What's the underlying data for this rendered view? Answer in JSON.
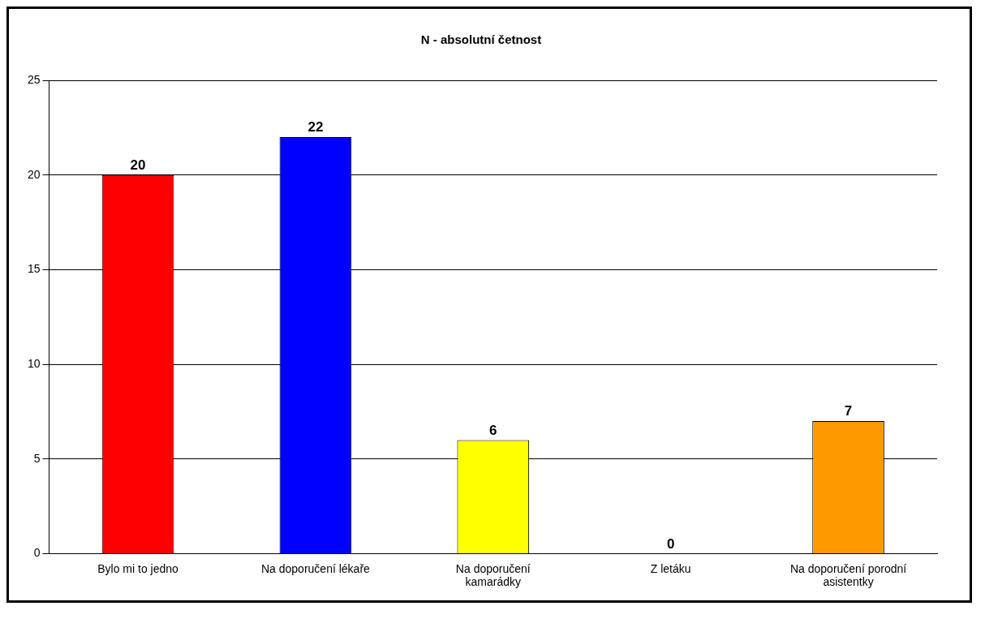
{
  "chart_data": {
    "type": "bar",
    "title": "N - absolutní četnost",
    "categories": [
      "Bylo mi to jedno",
      "Na doporučení lékaře",
      "Na doporučení kamarádky",
      "Z letáku",
      "Na doporučení porodní asistentky"
    ],
    "values": [
      20,
      22,
      6,
      0,
      7
    ],
    "colors": [
      "#ff0000",
      "#0000ff",
      "#ffff00",
      "#00cc00",
      "#ff9900"
    ],
    "ylim": [
      0,
      25
    ],
    "yticks": [
      0,
      5,
      10,
      15,
      20,
      25
    ],
    "grid": "y",
    "data_labels": true,
    "legend": false
  }
}
